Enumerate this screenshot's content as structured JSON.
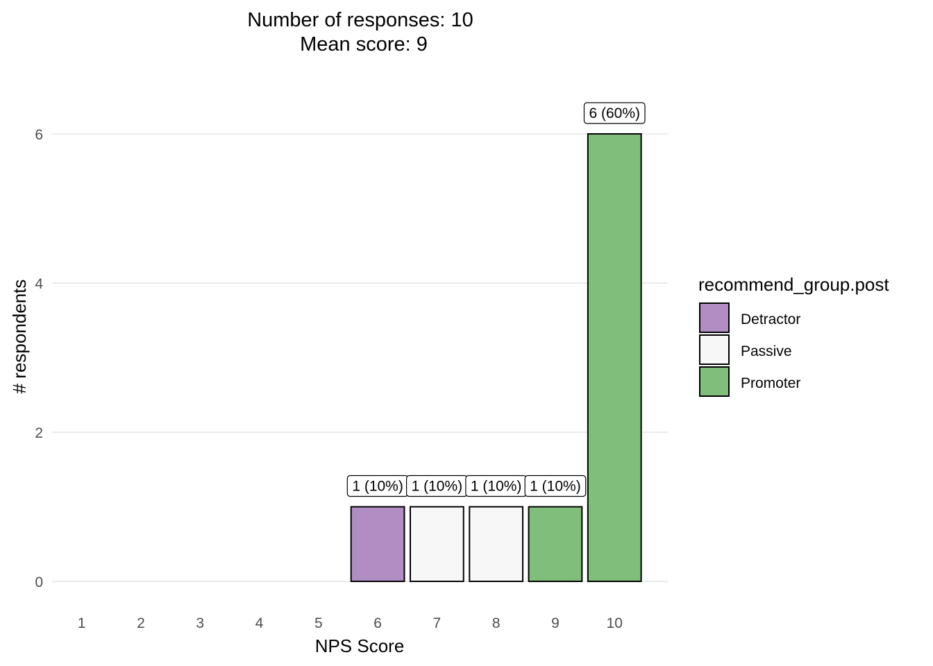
{
  "chart_data": {
    "type": "bar",
    "title_lines": [
      "Number of responses: 10",
      "Mean score: 9"
    ],
    "xlabel": "NPS Score",
    "ylabel": "# respondents",
    "categories": [
      "1",
      "2",
      "3",
      "4",
      "5",
      "6",
      "7",
      "8",
      "9",
      "10"
    ],
    "values": [
      0,
      0,
      0,
      0,
      0,
      1,
      1,
      1,
      1,
      6
    ],
    "groups": [
      "",
      "",
      "",
      "",
      "",
      "Detractor",
      "Passive",
      "Passive",
      "Promoter",
      "Promoter"
    ],
    "data_labels": [
      "",
      "",
      "",
      "",
      "",
      "1 (10%)",
      "1 (10%)",
      "1 (10%)",
      "1 (10%)",
      "6 (60%)"
    ],
    "ylim": [
      0,
      6.3
    ],
    "yticks": [
      0,
      2,
      4,
      6
    ],
    "grid": true,
    "legend": {
      "title": "recommend_group.post",
      "position": "right",
      "items": [
        {
          "label": "Detractor",
          "color": "#b28dc3"
        },
        {
          "label": "Passive",
          "color": "#f7f7f7"
        },
        {
          "label": "Promoter",
          "color": "#7fbf7b"
        }
      ]
    }
  }
}
